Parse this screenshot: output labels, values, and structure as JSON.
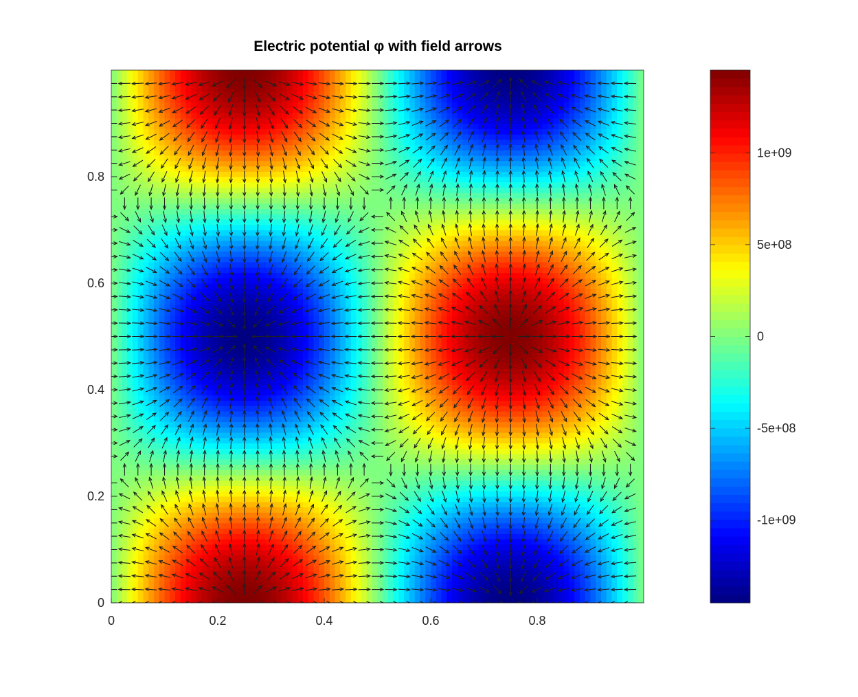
{
  "chart_data": {
    "type": "heatmap",
    "title": "Electric potential φ with field arrows",
    "xlabel": "",
    "ylabel": "",
    "xlim": [
      0,
      1
    ],
    "ylim": [
      0,
      1
    ],
    "x_ticks": [
      "0",
      "0.2",
      "0.4",
      "0.6",
      "0.8"
    ],
    "y_ticks": [
      "0",
      "0.2",
      "0.4",
      "0.6",
      "0.8"
    ],
    "x_tick_values": [
      0,
      0.2,
      0.4,
      0.6,
      0.8
    ],
    "y_tick_values": [
      0,
      0.2,
      0.4,
      0.6,
      0.8
    ],
    "field": {
      "description": "phi = A * sin(2*pi*x) * cos(2*pi*y)",
      "amplitude": 1450000000.0,
      "extrema": [
        {
          "x": 0.25,
          "y": 0.0,
          "value": 1450000000.0
        },
        {
          "x": 0.25,
          "y": 1.0,
          "value": 1450000000.0
        },
        {
          "x": 0.25,
          "y": 0.5,
          "value": -1450000000.0
        },
        {
          "x": 0.75,
          "y": 0.5,
          "value": 1450000000.0
        },
        {
          "x": 0.75,
          "y": 0.0,
          "value": -1450000000.0
        },
        {
          "x": 0.75,
          "y": 1.0,
          "value": -1450000000.0
        }
      ]
    },
    "quiver": {
      "grid_nx": 40,
      "grid_ny": 40,
      "color": "#1f1f1f",
      "note": "E = -grad(phi)"
    },
    "colorbar": {
      "colormap": "jet",
      "range": [
        -1450000000.0,
        1450000000.0
      ],
      "tick_values": [
        1000000000.0,
        500000000.0,
        0,
        -500000000.0,
        -1000000000.0
      ],
      "tick_labels": [
        "1e+09",
        "5e+08",
        "0",
        "-5e+08",
        "-1e+09"
      ]
    }
  }
}
